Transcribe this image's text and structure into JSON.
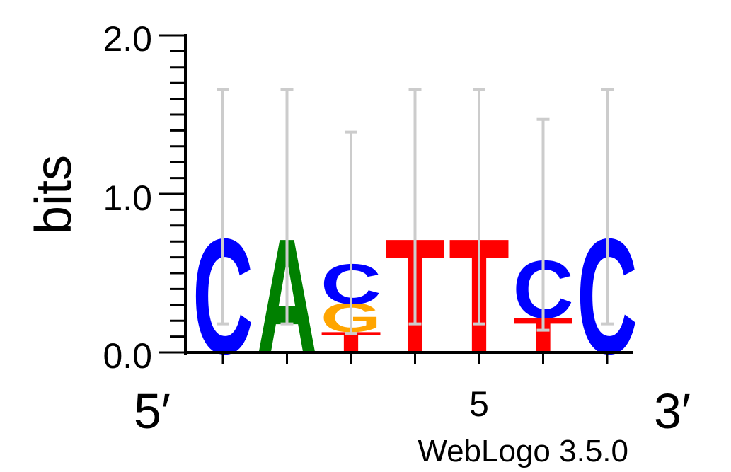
{
  "chart_data": {
    "type": "sequence_logo",
    "ylabel": "bits",
    "ylim": [
      0,
      2.0
    ],
    "y_ticks": [
      "0.0",
      "1.0",
      "2.0"
    ],
    "x_tick_labels": [
      "5"
    ],
    "x_tick_label_position": 5,
    "end_labels": {
      "left": "5′",
      "right": "3′"
    },
    "credit": "WebLogo 3.5.0",
    "colors": {
      "A": "#008000",
      "C": "#0000ff",
      "G": "#ffa500",
      "T": "#ff0000",
      "errorbar": "#cccccc"
    },
    "positions": [
      {
        "pos": 1,
        "letters": [
          {
            "base": "C",
            "bits": 0.72
          }
        ],
        "error": [
          0.18,
          1.66
        ]
      },
      {
        "pos": 2,
        "letters": [
          {
            "base": "A",
            "bits": 0.72
          }
        ],
        "error": [
          0.18,
          1.66
        ]
      },
      {
        "pos": 3,
        "letters": [
          {
            "base": "T",
            "bits": 0.13
          },
          {
            "base": "G",
            "bits": 0.18
          },
          {
            "base": "C",
            "bits": 0.25
          }
        ],
        "error": [
          0.12,
          1.39
        ]
      },
      {
        "pos": 4,
        "letters": [
          {
            "base": "T",
            "bits": 0.72
          }
        ],
        "error": [
          0.18,
          1.66
        ]
      },
      {
        "pos": 5,
        "letters": [
          {
            "base": "T",
            "bits": 0.72
          }
        ],
        "error": [
          0.18,
          1.66
        ]
      },
      {
        "pos": 6,
        "letters": [
          {
            "base": "T",
            "bits": 0.22
          },
          {
            "base": "C",
            "bits": 0.36
          }
        ],
        "error": [
          0.14,
          1.47
        ]
      },
      {
        "pos": 7,
        "letters": [
          {
            "base": "C",
            "bits": 0.72
          }
        ],
        "error": [
          0.18,
          1.66
        ]
      }
    ]
  }
}
